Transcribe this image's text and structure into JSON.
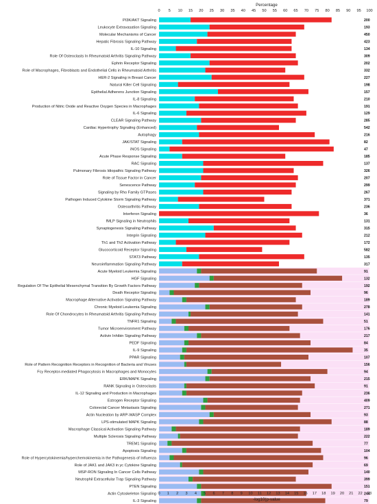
{
  "chart_data": {
    "type": "bar",
    "orientation": "horizontal",
    "top_axis_title": "Percentage",
    "bottom_axis_title": "-log10(p-value",
    "top_ticks": [
      0,
      5,
      10,
      15,
      20,
      25,
      30,
      35,
      40,
      45,
      50,
      55,
      60,
      65,
      70,
      75,
      80,
      85,
      90,
      95,
      100
    ],
    "bottom_ticks": [
      0,
      1,
      2,
      3,
      4,
      5,
      6,
      7,
      8,
      9,
      10,
      11,
      12,
      13,
      14,
      15,
      16,
      17,
      18,
      19,
      20,
      21,
      22,
      23
    ],
    "percent_range": [
      0,
      100
    ],
    "log_range": [
      0,
      23
    ],
    "grid": false,
    "colors": {
      "group1_down": "#00e0e8",
      "group1_up": "#ee2a2a",
      "group2_down": "#99bbf2",
      "group2_neutral": "#2e9e3e",
      "group2_up": "#a8503c",
      "group2_band": "#f8c6ef"
    },
    "pathways": [
      {
        "name": "PI3K/AKT Signaling",
        "count": "200",
        "down": 15,
        "up": 67,
        "group": 1
      },
      {
        "name": "Leukocyte Extravasation Signaling",
        "count": "193",
        "down": 24,
        "up": 45,
        "group": 1
      },
      {
        "name": "Molecular Mechanisms of Cancer",
        "count": "450",
        "down": 23,
        "up": 42,
        "group": 1
      },
      {
        "name": "Hepatic Fibrosis Signaling Pathway",
        "count": "423",
        "down": 18,
        "up": 45,
        "group": 1
      },
      {
        "name": "IL-10 Signaling",
        "count": "134",
        "down": 8,
        "up": 55,
        "group": 1
      },
      {
        "name": "Role Of Osteoclasts In Rheumatoid Arthritis Signaling Pathway",
        "count": "309",
        "down": 15,
        "up": 50,
        "group": 1
      },
      {
        "name": "Ephrin Receptor Signaling",
        "count": "202",
        "down": 24,
        "up": 42,
        "group": 1
      },
      {
        "name": "Role of Macrophages, Fibroblasts and Endothelial Cells in Rheumatoid Arthritis",
        "count": "332",
        "down": 22,
        "up": 38,
        "group": 1
      },
      {
        "name": "HER-2 Signaling in Breast Cancer",
        "count": "227",
        "down": 25,
        "up": 44,
        "group": 1
      },
      {
        "name": "Natural Killer Cell Signaling",
        "count": "198",
        "down": 9,
        "up": 53,
        "group": 1
      },
      {
        "name": "Epithelial Adherens Junction Signaling",
        "count": "157",
        "down": 28,
        "up": 43,
        "group": 1
      },
      {
        "name": "IL-8 Signaling",
        "count": "210",
        "down": 17,
        "up": 47,
        "group": 1
      },
      {
        "name": "Production of Nitric Oxide and Reactive Oxygen Species in Macrophages",
        "count": "191",
        "down": 19,
        "up": 47,
        "group": 1
      },
      {
        "name": "IL-6 Signaling",
        "count": "129",
        "down": 13,
        "up": 57,
        "group": 1
      },
      {
        "name": "CLEAR Signaling Pathway",
        "count": "285",
        "down": 20,
        "up": 45,
        "group": 1
      },
      {
        "name": "Cardiac Hypertrophy Signaling (Enhanced)",
        "count": "542",
        "down": 18,
        "up": 39,
        "group": 1
      },
      {
        "name": "Autophagy",
        "count": "216",
        "down": 19,
        "up": 55,
        "group": 1
      },
      {
        "name": "JAK/STAT Signaling",
        "count": "82",
        "down": 11,
        "up": 70,
        "group": 1
      },
      {
        "name": "iNOS Signaling",
        "count": "47",
        "down": 5,
        "up": 78,
        "group": 1
      },
      {
        "name": "Acute Phase Response Signaling",
        "count": "185",
        "down": 11,
        "up": 49,
        "group": 1
      },
      {
        "name": "RAC Signaling",
        "count": "137",
        "down": 21,
        "up": 57,
        "group": 1
      },
      {
        "name": "Pulmonary Fibrosis Idiopathic Signaling Pathway",
        "count": "326",
        "down": 21,
        "up": 43,
        "group": 1
      },
      {
        "name": "Role of Tissue Factor in Cancer",
        "count": "207",
        "down": 20,
        "up": 46,
        "group": 1
      },
      {
        "name": "Senescence Pathway",
        "count": "299",
        "down": 17,
        "up": 48,
        "group": 1
      },
      {
        "name": "Signaling by Rho Family GTPases",
        "count": "267",
        "down": 21,
        "up": 42,
        "group": 1
      },
      {
        "name": "Pathogen Induced Cytokine Storm Signaling Pathway",
        "count": "371",
        "down": 9,
        "up": 41,
        "group": 1
      },
      {
        "name": "Osteoarthritis Pathway",
        "count": "236",
        "down": 19,
        "up": 44,
        "group": 1
      },
      {
        "name": "Interferon Signaling",
        "count": "36",
        "down": 0,
        "up": 76,
        "group": 1
      },
      {
        "name": "fMLP Signaling in Neutrophils",
        "count": "131",
        "down": 14,
        "up": 48,
        "group": 1
      },
      {
        "name": "Synaptogenesis Signaling Pathway",
        "count": "315",
        "down": 26,
        "up": 39,
        "group": 1
      },
      {
        "name": "Integrin Signaling",
        "count": "212",
        "down": 22,
        "up": 46,
        "group": 1
      },
      {
        "name": "Th1 and Th2 Activation Pathway",
        "count": "172",
        "down": 8,
        "up": 54,
        "group": 1
      },
      {
        "name": "Glucocorticoid Receptor Signaling",
        "count": "582",
        "down": 13,
        "up": 36,
        "group": 1
      },
      {
        "name": "STAT3 Pathway",
        "count": "135",
        "down": 19,
        "up": 50,
        "group": 1
      },
      {
        "name": "Neuroinflammation Signaling Pathway",
        "count": "317",
        "down": 11,
        "up": 46,
        "group": 1
      },
      {
        "name": "Acute Myeloid Leukemia Signaling",
        "count": "91",
        "down": 18,
        "neutral": 2,
        "up": 55,
        "group": 2
      },
      {
        "name": "HGF Signaling",
        "count": "132",
        "down": 24,
        "neutral": 2,
        "up": 61,
        "group": 2
      },
      {
        "name": "Regulation Of The Epithelial Mesenchymal Transition By Growth Factors Pathway",
        "count": "192",
        "down": 17,
        "neutral": 2,
        "up": 49,
        "group": 2
      },
      {
        "name": "Death Receptor Signaling",
        "count": "96",
        "down": 5,
        "neutral": 2,
        "up": 65,
        "group": 2
      },
      {
        "name": "Macrophage Alternative Activation Signaling Pathway",
        "count": "189",
        "down": 11,
        "neutral": 2,
        "up": 52,
        "group": 2
      },
      {
        "name": "Chronic Myeloid Leukemia Signaling",
        "count": "278",
        "down": 22,
        "neutral": 2,
        "up": 44,
        "group": 2
      },
      {
        "name": "Role Of Chondrocytes In Rheumatoid Arthritis Signaling Pathway",
        "count": "141",
        "down": 14,
        "neutral": 1,
        "up": 51,
        "group": 2
      },
      {
        "name": "TNFR1 Signaling",
        "count": "51",
        "down": 6,
        "neutral": 2,
        "up": 70,
        "group": 2
      },
      {
        "name": "Tumor Microenvironment Pathway",
        "count": "176",
        "down": 12,
        "neutral": 2,
        "up": 48,
        "group": 2
      },
      {
        "name": "Activin Inhibin Signaling Pathway",
        "count": "217",
        "down": 18,
        "neutral": 2,
        "up": 47,
        "group": 2
      },
      {
        "name": "PEDF Signaling",
        "count": "84",
        "down": 12,
        "neutral": 2,
        "up": 58,
        "group": 2
      },
      {
        "name": "IL-9 Signaling",
        "count": "35",
        "down": 11,
        "neutral": 2,
        "up": 79,
        "group": 2
      },
      {
        "name": "PPAR Signaling",
        "count": "107",
        "down": 10,
        "neutral": 2,
        "up": 59,
        "group": 2
      },
      {
        "name": "Role of Pattern Recognition Receptors in Recognition of Bacteria and Viruses",
        "count": "156",
        "down": 12,
        "neutral": 1,
        "up": 45,
        "group": 2
      },
      {
        "name": "Fcy Receptor-mediated Phagocytosis in Macrophages and Monocytes",
        "count": "94",
        "down": 23,
        "neutral": 2,
        "up": 55,
        "group": 2
      },
      {
        "name": "ERK/MAPK Signaling",
        "count": "215",
        "down": 22,
        "neutral": 2,
        "up": 48,
        "group": 2
      },
      {
        "name": "RANK Signaling in Osteoclasts",
        "count": "91",
        "down": 12,
        "neutral": 1,
        "up": 61,
        "group": 2
      },
      {
        "name": "IL-12 Signaling and Production in Macrophages",
        "count": "236",
        "down": 11,
        "neutral": 2,
        "up": 55,
        "group": 2
      },
      {
        "name": "Estrogen Receptor Signaling",
        "count": "409",
        "down": 21,
        "neutral": 2,
        "up": 44,
        "group": 2
      },
      {
        "name": "Colorectal Cancer Metastasis Signaling",
        "count": "271",
        "down": 20,
        "neutral": 2,
        "up": 44,
        "group": 2
      },
      {
        "name": "Actin Nucleation by ARP-WASP Complex",
        "count": "93",
        "down": 24,
        "neutral": 2,
        "up": 46,
        "group": 2
      },
      {
        "name": "LPS-stimulated MAPK Signaling",
        "count": "88",
        "down": 19,
        "neutral": 2,
        "up": 61,
        "group": 2
      },
      {
        "name": "Macrophage Classical Activation Signaling Pathway",
        "count": "189",
        "down": 6,
        "neutral": 2,
        "up": 59,
        "group": 2
      },
      {
        "name": "Multiple Sclerosis Signaling Pathway",
        "count": "222",
        "down": 9,
        "neutral": 1,
        "up": 56,
        "group": 2
      },
      {
        "name": "TREM1 Signaling",
        "count": "77",
        "down": 4,
        "neutral": 2,
        "up": 67,
        "group": 2
      },
      {
        "name": "Apoptosis Signaling",
        "count": "104",
        "down": 11,
        "neutral": 2,
        "up": 64,
        "group": 2
      },
      {
        "name": "Role of Hypercytokinemia/hyperchemokinemia in the Pathogenesis of Influenza",
        "count": "96",
        "down": 5,
        "neutral": 2,
        "up": 71,
        "group": 2
      },
      {
        "name": "Role of JAK1 and JAK3 in yc Cytokine Signaling",
        "count": "69",
        "down": 10,
        "neutral": 1,
        "up": 62,
        "group": 2
      },
      {
        "name": "MSP-RON Signaling In Cancer Cells Pathway",
        "count": "140",
        "down": 19,
        "neutral": 2,
        "up": 50,
        "group": 2
      },
      {
        "name": "Neutrophil Extracellular Trap Signaling Pathway",
        "count": "399",
        "down": 14,
        "neutral": 2,
        "up": 49,
        "group": 2
      },
      {
        "name": "PTEN Signaling",
        "count": "151",
        "down": 18,
        "neutral": 2,
        "up": 62,
        "group": 2
      },
      {
        "name": "Actin Cytoskeleton Signaling",
        "count": "244",
        "down": 20,
        "neutral": 2,
        "up": 48,
        "group": 2
      },
      {
        "name": "IL-3 Signaling",
        "count": "79",
        "down": 18,
        "neutral": 2,
        "up": 59,
        "group": 2
      },
      {
        "name": "Axonal Guidance Signaling",
        "count": "510",
        "down": 21,
        "neutral": 1,
        "up": 46,
        "group": 2
      },
      {
        "name": "Oncostatin M Signaling",
        "count": "43",
        "down": 14,
        "neutral": 2,
        "up": 56,
        "group": 2
      }
    ]
  }
}
